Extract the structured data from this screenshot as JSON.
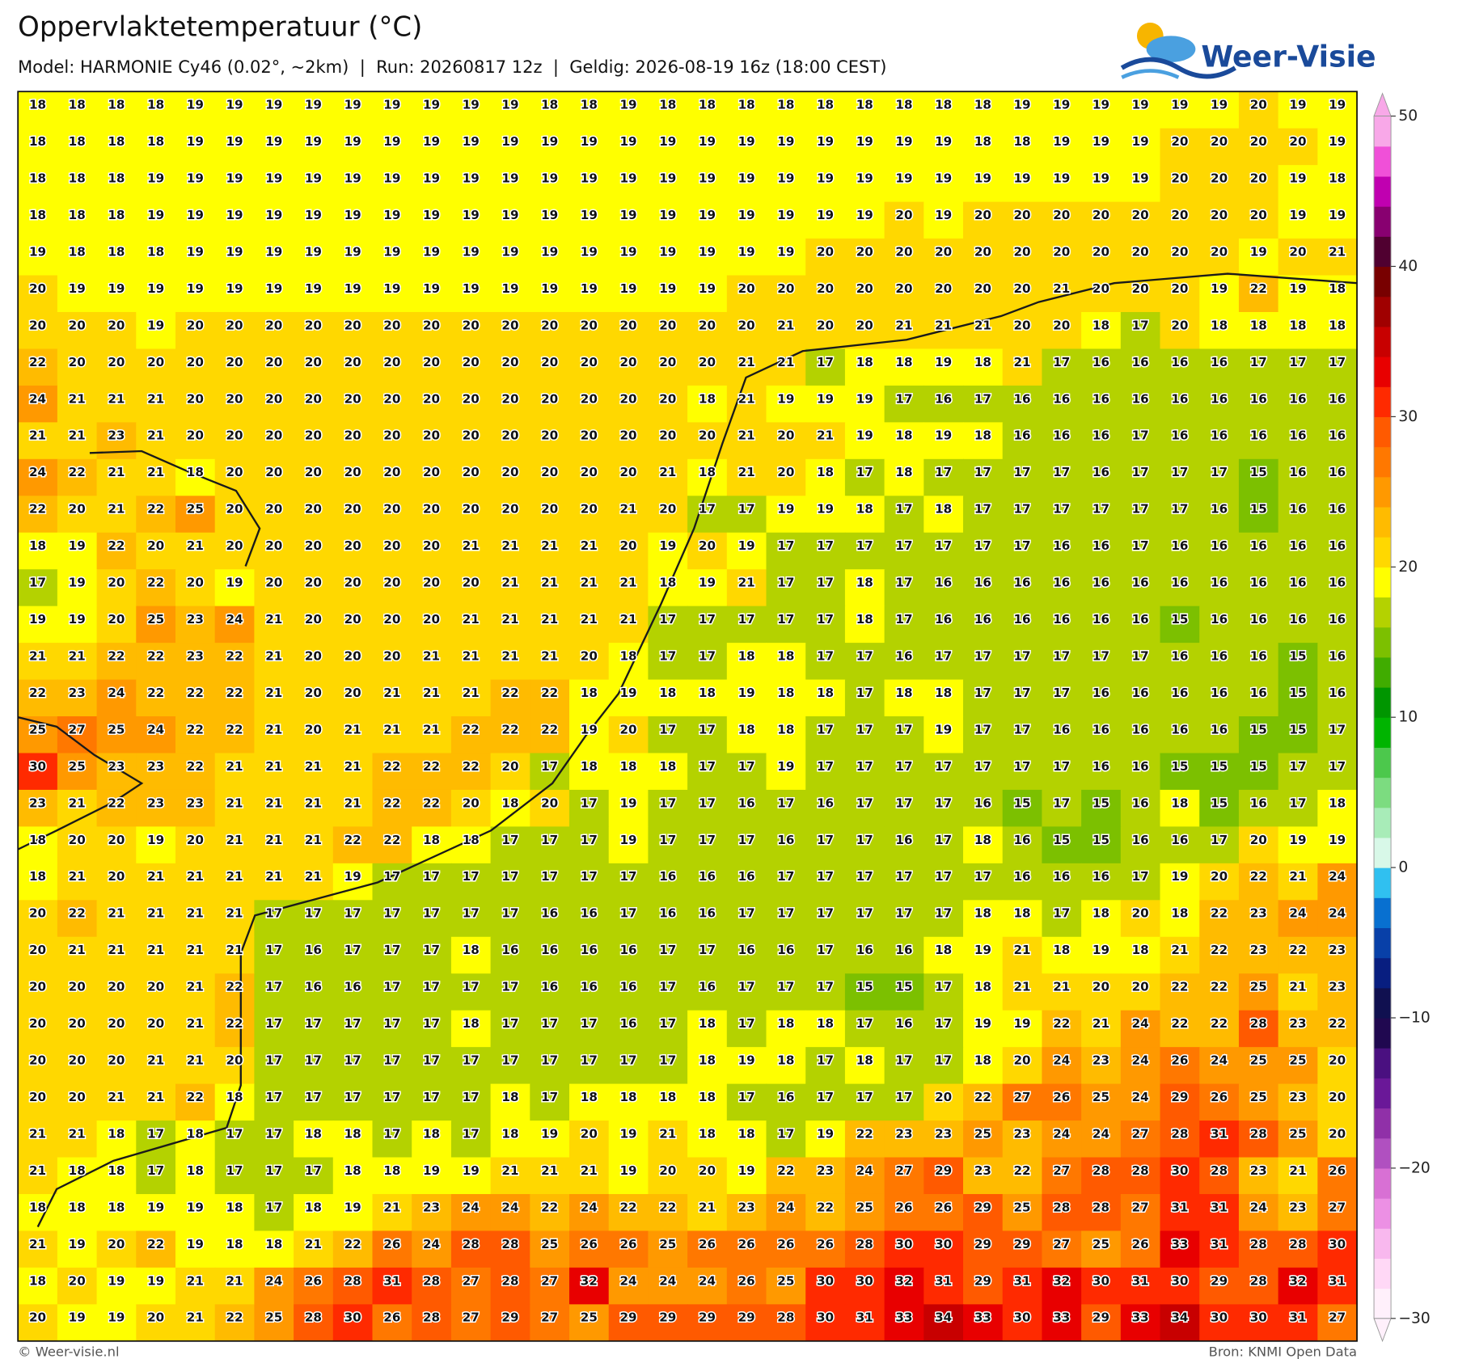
{
  "map": {
    "title": "Oppervlaktetemperatuur (°C)",
    "subtitle": "Model: HARMONIE Cy46 (0.02°, ~2km)  |  Run: 20260817 12z  |  Geldig: 2026-08-19 16z (18:00 CEST)",
    "logo": "Weer-Visie",
    "footer_left": "© Weer-visie.nl",
    "footer_right": "Bron: KNMI Open Data",
    "grid": [
      [
        18,
        18,
        18,
        18,
        19,
        19,
        19,
        19,
        19,
        19,
        19,
        19,
        19,
        18,
        18,
        19,
        18,
        18,
        18,
        18,
        18,
        18,
        18,
        18,
        18,
        19,
        19,
        19,
        19,
        19,
        19,
        20,
        19,
        19
      ],
      [
        18,
        18,
        18,
        18,
        19,
        19,
        19,
        19,
        19,
        19,
        19,
        19,
        19,
        19,
        19,
        19,
        19,
        19,
        19,
        19,
        19,
        19,
        19,
        19,
        18,
        18,
        19,
        19,
        19,
        20,
        20,
        20,
        20,
        19
      ],
      [
        18,
        18,
        18,
        19,
        19,
        19,
        19,
        19,
        19,
        19,
        19,
        19,
        19,
        19,
        19,
        19,
        19,
        19,
        19,
        19,
        19,
        19,
        19,
        19,
        19,
        19,
        19,
        19,
        19,
        20,
        20,
        20,
        19,
        18
      ],
      [
        18,
        18,
        18,
        19,
        19,
        19,
        19,
        19,
        19,
        19,
        19,
        19,
        19,
        19,
        19,
        19,
        19,
        19,
        19,
        19,
        19,
        19,
        20,
        19,
        20,
        20,
        20,
        20,
        20,
        20,
        20,
        20,
        19,
        19
      ],
      [
        19,
        18,
        18,
        18,
        19,
        19,
        19,
        19,
        19,
        19,
        19,
        19,
        19,
        19,
        19,
        19,
        19,
        19,
        19,
        19,
        20,
        20,
        20,
        20,
        20,
        20,
        20,
        20,
        20,
        20,
        20,
        19,
        20,
        21
      ],
      [
        20,
        19,
        19,
        19,
        19,
        19,
        19,
        19,
        19,
        19,
        19,
        19,
        19,
        19,
        19,
        19,
        19,
        19,
        20,
        20,
        20,
        20,
        20,
        20,
        20,
        20,
        21,
        20,
        20,
        20,
        19,
        22,
        19,
        18
      ],
      [
        20,
        20,
        20,
        19,
        20,
        20,
        20,
        20,
        20,
        20,
        20,
        20,
        20,
        20,
        20,
        20,
        20,
        20,
        20,
        21,
        20,
        20,
        21,
        21,
        21,
        20,
        20,
        18,
        17,
        20,
        18,
        18,
        18,
        18
      ],
      [
        22,
        20,
        20,
        20,
        20,
        20,
        20,
        20,
        20,
        20,
        20,
        20,
        20,
        20,
        20,
        20,
        20,
        20,
        21,
        21,
        17,
        18,
        18,
        19,
        18,
        21,
        17,
        16,
        16,
        16,
        16,
        17,
        17,
        17
      ],
      [
        24,
        21,
        21,
        21,
        20,
        20,
        20,
        20,
        20,
        20,
        20,
        20,
        20,
        20,
        20,
        20,
        20,
        18,
        21,
        19,
        19,
        19,
        17,
        16,
        17,
        16,
        16,
        16,
        16,
        16,
        16,
        16,
        16,
        16
      ],
      [
        21,
        21,
        23,
        21,
        20,
        20,
        20,
        20,
        20,
        20,
        20,
        20,
        20,
        20,
        20,
        20,
        20,
        20,
        21,
        20,
        21,
        19,
        18,
        19,
        18,
        16,
        16,
        16,
        17,
        16,
        16,
        16,
        16,
        16
      ],
      [
        24,
        22,
        21,
        21,
        18,
        20,
        20,
        20,
        20,
        20,
        20,
        20,
        20,
        20,
        20,
        20,
        21,
        18,
        21,
        20,
        18,
        17,
        18,
        17,
        17,
        17,
        17,
        16,
        17,
        17,
        17,
        15,
        16,
        16
      ],
      [
        22,
        20,
        21,
        22,
        25,
        20,
        20,
        20,
        20,
        20,
        20,
        20,
        20,
        20,
        20,
        21,
        20,
        17,
        17,
        19,
        19,
        18,
        17,
        18,
        17,
        17,
        17,
        17,
        17,
        17,
        16,
        15,
        16,
        16
      ],
      [
        18,
        19,
        22,
        20,
        21,
        20,
        20,
        20,
        20,
        20,
        20,
        21,
        21,
        21,
        21,
        20,
        19,
        20,
        19,
        17,
        17,
        17,
        17,
        17,
        17,
        17,
        16,
        16,
        17,
        16,
        16,
        16,
        16,
        16
      ],
      [
        17,
        19,
        20,
        22,
        20,
        19,
        20,
        20,
        20,
        20,
        20,
        20,
        21,
        21,
        21,
        21,
        18,
        19,
        21,
        17,
        17,
        18,
        17,
        16,
        16,
        16,
        16,
        16,
        16,
        16,
        16,
        16,
        16,
        16
      ],
      [
        19,
        19,
        20,
        25,
        23,
        24,
        21,
        20,
        20,
        20,
        20,
        21,
        21,
        21,
        21,
        21,
        17,
        17,
        17,
        17,
        17,
        18,
        17,
        16,
        16,
        16,
        16,
        16,
        16,
        15,
        16,
        16,
        16,
        16
      ],
      [
        21,
        21,
        22,
        22,
        23,
        22,
        21,
        20,
        20,
        20,
        21,
        21,
        21,
        21,
        20,
        18,
        17,
        17,
        18,
        18,
        17,
        17,
        16,
        17,
        17,
        17,
        17,
        17,
        17,
        16,
        16,
        16,
        15,
        16
      ],
      [
        22,
        23,
        24,
        22,
        22,
        22,
        21,
        20,
        20,
        21,
        21,
        21,
        22,
        22,
        18,
        19,
        18,
        18,
        19,
        18,
        18,
        17,
        18,
        18,
        17,
        17,
        17,
        16,
        16,
        16,
        16,
        16,
        15,
        16
      ],
      [
        25,
        27,
        25,
        24,
        22,
        22,
        21,
        20,
        21,
        21,
        21,
        22,
        22,
        22,
        19,
        20,
        17,
        17,
        18,
        18,
        17,
        17,
        17,
        19,
        17,
        17,
        16,
        16,
        16,
        16,
        16,
        15,
        15,
        17
      ],
      [
        30,
        25,
        23,
        23,
        22,
        21,
        21,
        21,
        21,
        22,
        22,
        22,
        20,
        17,
        18,
        18,
        18,
        17,
        17,
        19,
        17,
        17,
        17,
        17,
        17,
        17,
        17,
        16,
        16,
        15,
        15,
        15,
        17,
        17
      ],
      [
        23,
        21,
        22,
        23,
        23,
        21,
        21,
        21,
        21,
        22,
        22,
        20,
        18,
        20,
        17,
        19,
        17,
        17,
        16,
        17,
        16,
        17,
        17,
        17,
        16,
        15,
        17,
        15,
        16,
        18,
        15,
        16,
        17,
        18
      ],
      [
        18,
        20,
        20,
        19,
        20,
        21,
        21,
        21,
        22,
        22,
        18,
        18,
        17,
        17,
        17,
        19,
        17,
        17,
        17,
        16,
        17,
        17,
        16,
        17,
        18,
        16,
        15,
        15,
        16,
        16,
        17,
        20,
        19,
        19
      ],
      [
        18,
        21,
        20,
        21,
        21,
        21,
        21,
        21,
        19,
        17,
        17,
        17,
        17,
        17,
        17,
        17,
        16,
        16,
        16,
        17,
        17,
        17,
        17,
        17,
        17,
        16,
        16,
        16,
        17,
        19,
        20,
        22,
        21,
        24
      ],
      [
        20,
        22,
        21,
        21,
        21,
        21,
        17,
        17,
        17,
        17,
        17,
        17,
        17,
        16,
        16,
        17,
        16,
        16,
        17,
        17,
        17,
        17,
        17,
        17,
        18,
        18,
        17,
        18,
        20,
        18,
        22,
        23,
        24,
        24
      ],
      [
        20,
        21,
        21,
        21,
        21,
        21,
        17,
        16,
        17,
        17,
        17,
        18,
        16,
        16,
        16,
        16,
        17,
        17,
        16,
        16,
        17,
        16,
        16,
        18,
        19,
        21,
        18,
        19,
        18,
        21,
        22,
        23,
        22,
        23
      ],
      [
        20,
        20,
        20,
        20,
        21,
        22,
        17,
        16,
        16,
        17,
        17,
        17,
        17,
        16,
        16,
        16,
        17,
        16,
        17,
        17,
        17,
        15,
        15,
        17,
        18,
        21,
        21,
        20,
        20,
        22,
        22,
        25,
        21,
        23
      ],
      [
        20,
        20,
        20,
        20,
        21,
        22,
        17,
        17,
        17,
        17,
        17,
        18,
        17,
        17,
        17,
        16,
        17,
        18,
        17,
        18,
        18,
        17,
        16,
        17,
        19,
        19,
        22,
        21,
        24,
        22,
        22,
        28,
        23,
        22
      ],
      [
        20,
        20,
        20,
        21,
        21,
        20,
        17,
        17,
        17,
        17,
        17,
        17,
        17,
        17,
        17,
        17,
        17,
        18,
        19,
        18,
        17,
        18,
        17,
        17,
        18,
        20,
        24,
        23,
        24,
        26,
        24,
        25,
        25,
        20
      ],
      [
        20,
        20,
        21,
        21,
        22,
        18,
        17,
        17,
        17,
        17,
        17,
        17,
        18,
        17,
        18,
        18,
        18,
        18,
        17,
        16,
        17,
        17,
        17,
        20,
        22,
        27,
        26,
        25,
        24,
        29,
        26,
        25,
        23,
        20
      ],
      [
        21,
        21,
        18,
        17,
        18,
        17,
        17,
        18,
        18,
        17,
        18,
        17,
        18,
        19,
        20,
        19,
        21,
        18,
        18,
        17,
        19,
        22,
        23,
        23,
        25,
        23,
        24,
        24,
        27,
        28,
        31,
        28,
        25,
        20
      ],
      [
        21,
        18,
        18,
        17,
        18,
        17,
        17,
        17,
        18,
        18,
        19,
        19,
        21,
        21,
        21,
        19,
        20,
        20,
        19,
        22,
        23,
        24,
        27,
        29,
        23,
        22,
        27,
        28,
        28,
        30,
        28,
        23,
        21,
        26
      ],
      [
        18,
        18,
        18,
        19,
        19,
        18,
        17,
        18,
        19,
        21,
        23,
        24,
        24,
        22,
        24,
        22,
        22,
        21,
        23,
        24,
        22,
        25,
        26,
        26,
        29,
        25,
        28,
        28,
        27,
        31,
        31,
        24,
        23,
        27
      ],
      [
        21,
        19,
        20,
        22,
        19,
        18,
        18,
        21,
        22,
        26,
        24,
        28,
        28,
        25,
        26,
        26,
        25,
        26,
        26,
        26,
        26,
        28,
        30,
        30,
        29,
        29,
        27,
        25,
        26,
        33,
        31,
        28,
        28,
        30
      ],
      [
        18,
        20,
        19,
        19,
        21,
        21,
        24,
        26,
        28,
        31,
        28,
        27,
        28,
        27,
        32,
        24,
        24,
        24,
        26,
        25,
        30,
        30,
        32,
        31,
        29,
        31,
        32,
        30,
        31,
        30,
        29,
        28,
        32,
        31
      ],
      [
        20,
        19,
        19,
        20,
        21,
        22,
        25,
        28,
        30,
        26,
        28,
        27,
        29,
        27,
        25,
        29,
        29,
        29,
        29,
        28,
        30,
        31,
        33,
        34,
        33,
        30,
        33,
        29,
        33,
        34,
        30,
        30,
        31,
        27
      ]
    ],
    "colorbar": {
      "range": [
        -30,
        50
      ],
      "ticks": [
        50,
        40,
        30,
        20,
        10,
        0,
        {
          "value": -10,
          "label": "−10"
        },
        {
          "value": -20,
          "label": "−20"
        },
        {
          "value": -30,
          "label": "−30"
        }
      ],
      "colors": [
        "#fff0fb",
        "#ffd8f6",
        "#f8b8ee",
        "#ec90e4",
        "#d870d4",
        "#b050c0",
        "#9030a8",
        "#6a1898",
        "#4a1080",
        "#200850",
        "#101050",
        "#081e80",
        "#0840a8",
        "#0870d0",
        "#30c0f0",
        "#d8f8e8",
        "#a8ecb8",
        "#7cdc80",
        "#4cc84c",
        "#00b400",
        "#009600",
        "#40ac00",
        "#7cc000",
        "#b4d200",
        "#ffff00",
        "#ffd800",
        "#ffbb00",
        "#ff9900",
        "#ff7800",
        "#ff5a00",
        "#ff2a00",
        "#e80000",
        "#c80000",
        "#a00000",
        "#780000",
        "#500030",
        "#880070",
        "#c000b0",
        "#f050d8",
        "#f8a8e8"
      ]
    }
  }
}
